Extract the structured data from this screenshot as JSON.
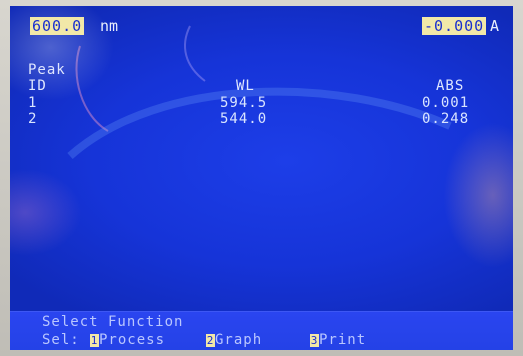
{
  "header": {
    "wavelength": "600.0",
    "wavelength_unit": "nm",
    "absorbance": "-0.000",
    "absorbance_unit": "A"
  },
  "table": {
    "title": "Peak",
    "headers": {
      "id": "ID",
      "wl": "WL",
      "abs": "ABS"
    },
    "rows": [
      {
        "id": "1",
        "wl": "594.5",
        "abs": "0.001"
      },
      {
        "id": "2",
        "wl": "544.0",
        "abs": "0.248"
      }
    ]
  },
  "footer": {
    "prompt": "Select Function",
    "sel_label": "Sel:",
    "functions": [
      {
        "key": "1",
        "label": "Process"
      },
      {
        "key": "2",
        "label": "Graph"
      },
      {
        "key": "3",
        "label": "Print"
      }
    ]
  },
  "colors": {
    "screen": "#1634d8",
    "highlight": "#f2e8a8",
    "text": "#dfe6ff"
  }
}
